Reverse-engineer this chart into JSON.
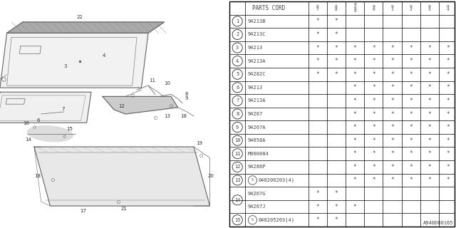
{
  "title": "A940D00165",
  "col_headers": [
    "8\n7",
    "8\n8",
    "8\n8\n0",
    "9\n0",
    "9\n1",
    "9\n2",
    "9\n3",
    "9\n4"
  ],
  "rows": [
    {
      "num": "1",
      "s_prefix": false,
      "part": "94213B",
      "marks": [
        1,
        1,
        0,
        0,
        0,
        0,
        0,
        0
      ]
    },
    {
      "num": "2",
      "s_prefix": false,
      "part": "94213C",
      "marks": [
        1,
        1,
        0,
        0,
        0,
        0,
        0,
        0
      ]
    },
    {
      "num": "3",
      "s_prefix": false,
      "part": "94213",
      "marks": [
        1,
        1,
        1,
        1,
        1,
        1,
        1,
        1
      ]
    },
    {
      "num": "4",
      "s_prefix": false,
      "part": "94213A",
      "marks": [
        1,
        1,
        1,
        1,
        1,
        1,
        1,
        1
      ]
    },
    {
      "num": "5",
      "s_prefix": false,
      "part": "94282C",
      "marks": [
        1,
        1,
        1,
        1,
        1,
        1,
        1,
        1
      ]
    },
    {
      "num": "6",
      "s_prefix": false,
      "part": "94213",
      "marks": [
        0,
        0,
        1,
        1,
        1,
        1,
        1,
        1
      ]
    },
    {
      "num": "7",
      "s_prefix": false,
      "part": "94213A",
      "marks": [
        0,
        0,
        1,
        1,
        1,
        1,
        1,
        1
      ]
    },
    {
      "num": "8",
      "s_prefix": false,
      "part": "94267",
      "marks": [
        0,
        0,
        1,
        1,
        1,
        1,
        1,
        1
      ]
    },
    {
      "num": "9",
      "s_prefix": false,
      "part": "94267A",
      "marks": [
        0,
        0,
        1,
        1,
        1,
        1,
        1,
        1
      ]
    },
    {
      "num": "10",
      "s_prefix": false,
      "part": "94058A",
      "marks": [
        0,
        0,
        1,
        1,
        1,
        1,
        1,
        1
      ]
    },
    {
      "num": "11",
      "s_prefix": false,
      "part": "M000084",
      "marks": [
        0,
        0,
        1,
        1,
        1,
        1,
        1,
        1
      ]
    },
    {
      "num": "12",
      "s_prefix": false,
      "part": "94286P",
      "marks": [
        0,
        0,
        1,
        1,
        1,
        1,
        1,
        1
      ]
    },
    {
      "num": "13",
      "s_prefix": true,
      "part": "040206203(4)",
      "marks": [
        0,
        0,
        1,
        1,
        1,
        1,
        1,
        1
      ]
    },
    {
      "num": "14",
      "s_prefix": false,
      "part": "94267G",
      "marks": [
        1,
        1,
        0,
        0,
        0,
        0,
        0,
        0
      ],
      "sub": "a"
    },
    {
      "num": "14",
      "s_prefix": false,
      "part": "94267J",
      "marks": [
        1,
        1,
        1,
        0,
        0,
        0,
        0,
        0
      ],
      "sub": "b"
    },
    {
      "num": "15",
      "s_prefix": true,
      "part": "040205203(4)",
      "marks": [
        1,
        1,
        0,
        0,
        0,
        0,
        0,
        0
      ]
    }
  ],
  "bg_color": "#ffffff",
  "draw_color": "#666666",
  "table_line_color": "#000000",
  "text_color": "#444444"
}
